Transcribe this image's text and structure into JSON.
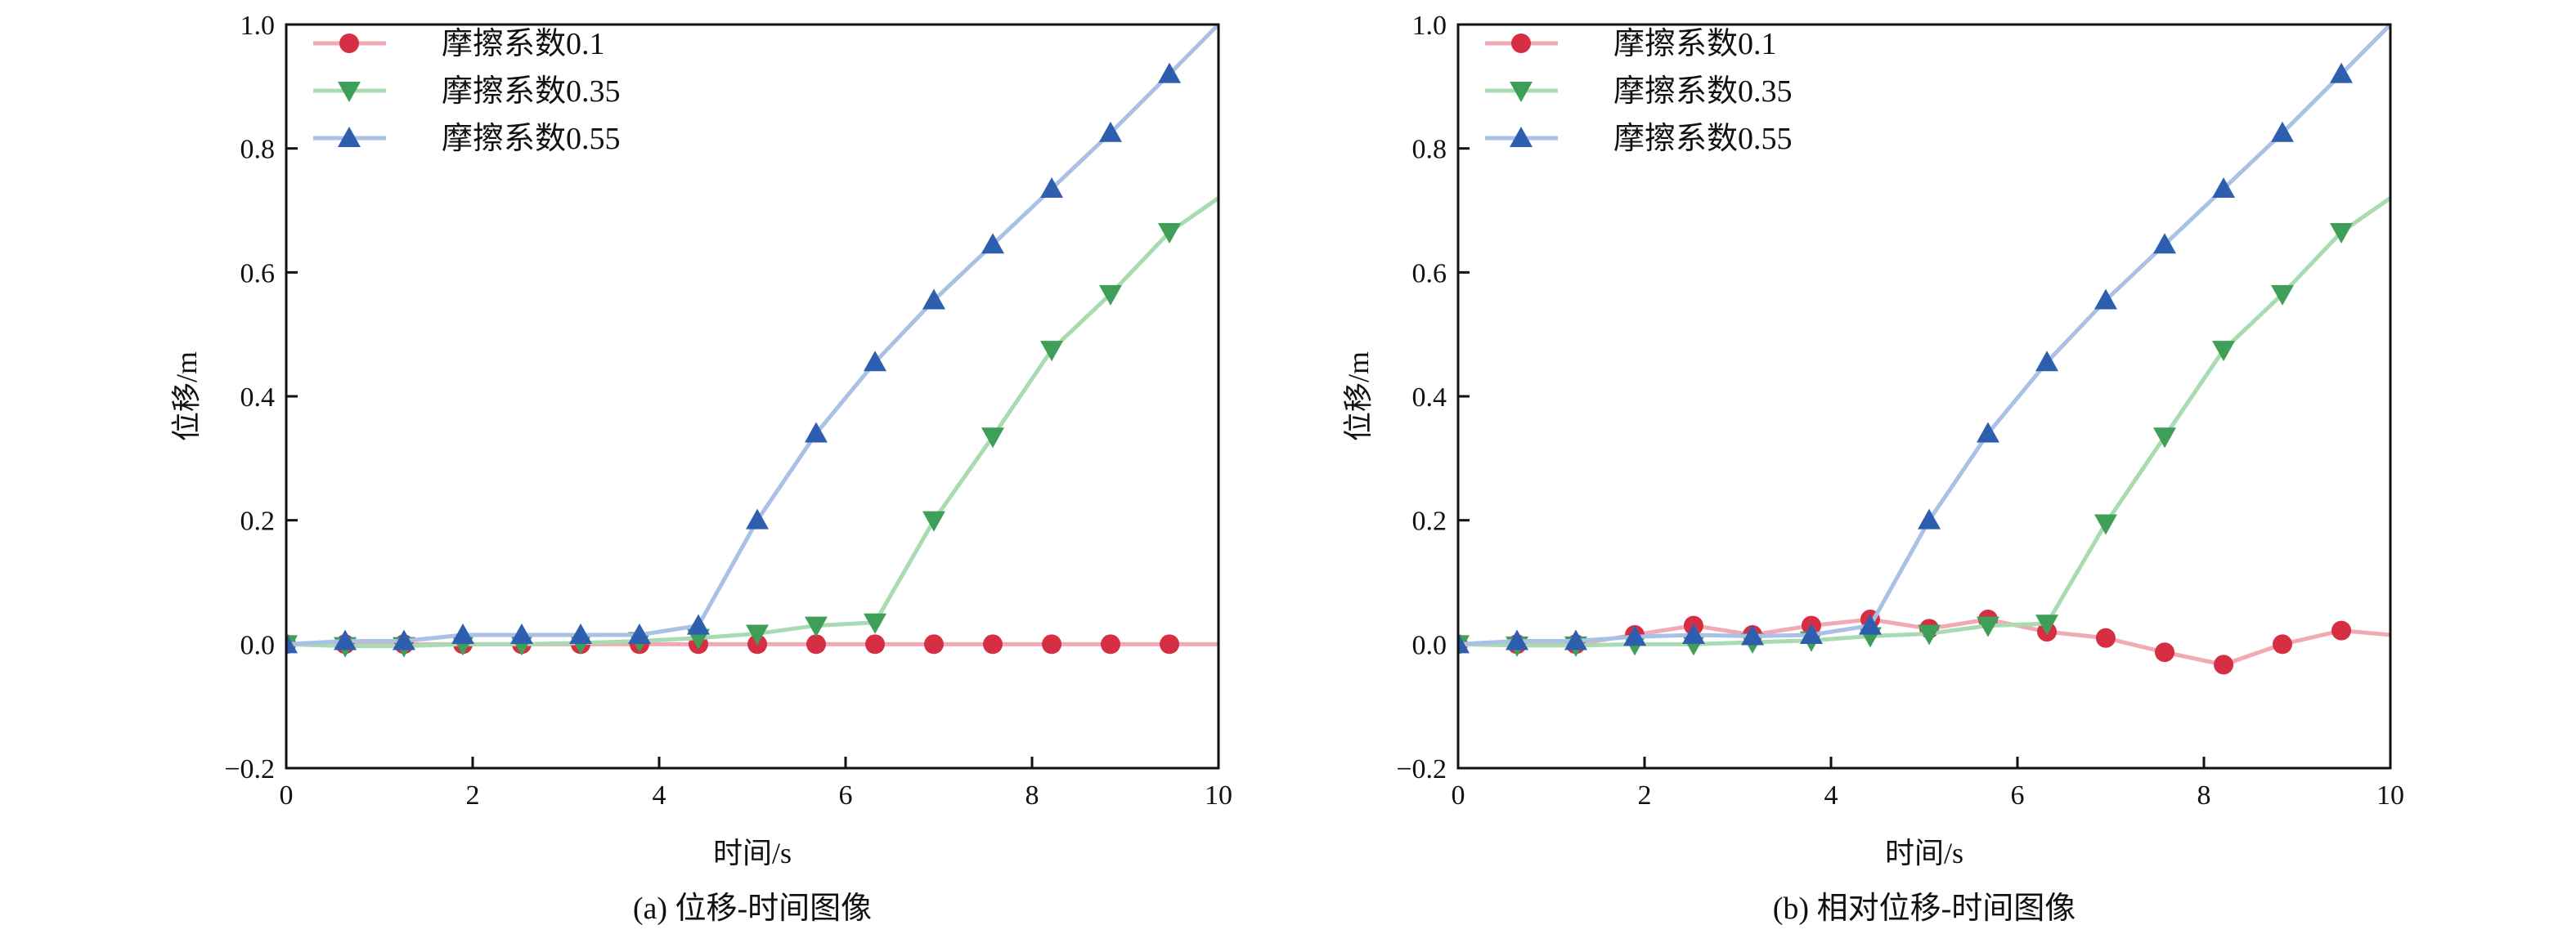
{
  "colors": {
    "s1": "#d62f44",
    "s2": "#3f9e57",
    "s3": "#2e5fae",
    "s1_line": "#f2a9b4",
    "s2_line": "#a8dbb1",
    "s3_line": "#a9c1e6"
  },
  "chart_data": [
    {
      "type": "line",
      "caption": "(a) 位移-时间图像",
      "xlabel": "时间/s",
      "ylabel": "位移/m",
      "xlim": [
        0,
        10
      ],
      "ylim": [
        -0.2,
        1.0
      ],
      "xticks": [
        "0",
        "2",
        "4",
        "6",
        "8",
        "10"
      ],
      "yticks": [
        "−0.2",
        "0.0",
        "0.2",
        "0.4",
        "0.6",
        "0.8",
        "1.0"
      ],
      "legend_position": "top-left",
      "x": [
        0,
        0.632,
        1.263,
        1.895,
        2.526,
        3.158,
        3.789,
        4.421,
        5.053,
        5.684,
        6.316,
        6.947,
        7.579,
        8.211,
        8.842,
        9.474,
        10
      ],
      "series": [
        {
          "name": "摩擦系数0.1",
          "marker": "circle",
          "values": [
            0,
            0,
            0,
            0,
            0,
            0,
            0,
            0,
            0,
            0,
            0,
            0,
            0,
            0,
            0,
            0,
            0
          ]
        },
        {
          "name": "摩擦系数0.35",
          "marker": "triangle-down",
          "values": [
            0,
            -0.003,
            -0.003,
            0,
            0,
            0.002,
            0.005,
            0.01,
            0.017,
            0.03,
            0.035,
            0.2,
            0.335,
            0.475,
            0.565,
            0.665,
            0.72
          ]
        },
        {
          "name": "摩擦系数0.55",
          "marker": "triangle-up",
          "values": [
            0,
            0.005,
            0.005,
            0.015,
            0.015,
            0.015,
            0.015,
            0.03,
            0.2,
            0.34,
            0.455,
            0.555,
            0.645,
            0.735,
            0.825,
            0.92,
            1.0
          ]
        }
      ]
    },
    {
      "type": "line",
      "caption": "(b) 相对位移-时间图像",
      "xlabel": "时间/s",
      "ylabel": "位移/m",
      "xlim": [
        0,
        10
      ],
      "ylim": [
        -0.2,
        1.0
      ],
      "xticks": [
        "0",
        "2",
        "4",
        "6",
        "8",
        "10"
      ],
      "yticks": [
        "−0.2",
        "0.0",
        "0.2",
        "0.4",
        "0.6",
        "0.8",
        "1.0"
      ],
      "legend_position": "top-left",
      "x": [
        0,
        0.632,
        1.263,
        1.895,
        2.526,
        3.158,
        3.789,
        4.421,
        5.053,
        5.684,
        6.316,
        6.947,
        7.579,
        8.211,
        8.842,
        9.474,
        10
      ],
      "series": [
        {
          "name": "摩擦系数0.1",
          "marker": "circle",
          "values": [
            0,
            0,
            0,
            0.015,
            0.03,
            0.015,
            0.03,
            0.04,
            0.025,
            0.04,
            0.02,
            0.01,
            -0.013,
            -0.033,
            0,
            0.022,
            0.015
          ]
        },
        {
          "name": "摩擦系数0.35",
          "marker": "triangle-down",
          "values": [
            0,
            -0.002,
            -0.002,
            0,
            0,
            0.003,
            0.006,
            0.013,
            0.017,
            0.03,
            0.033,
            0.195,
            0.335,
            0.475,
            0.565,
            0.665,
            0.72
          ]
        },
        {
          "name": "摩擦系数0.55",
          "marker": "triangle-up",
          "values": [
            0,
            0.005,
            0.005,
            0.012,
            0.015,
            0.013,
            0.015,
            0.03,
            0.2,
            0.34,
            0.455,
            0.555,
            0.645,
            0.735,
            0.825,
            0.92,
            1.0
          ]
        }
      ]
    }
  ]
}
